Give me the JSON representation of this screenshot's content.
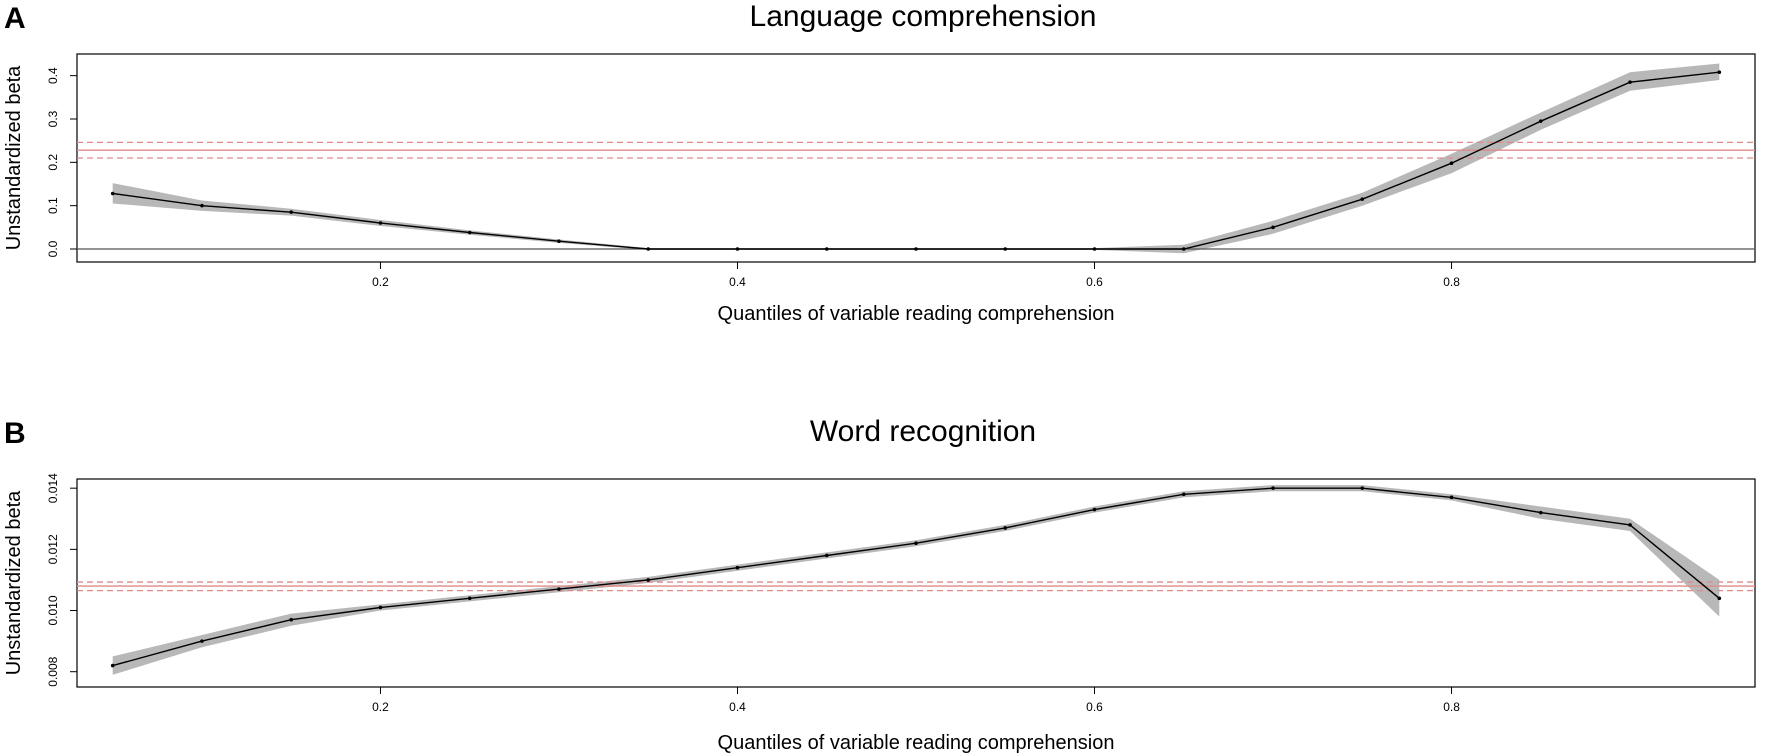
{
  "chart_data": [
    {
      "type": "line",
      "panel_label": "A",
      "title": "Language comprehension",
      "xlabel": "Quantiles of variable reading comprehension",
      "ylabel": "Unstandardized beta",
      "xlim": [
        0.03,
        0.97
      ],
      "ylim": [
        -0.03,
        0.45
      ],
      "x_ticks": [
        0.2,
        0.4,
        0.6,
        0.8
      ],
      "x_tick_labels": [
        "0.2",
        "0.4",
        "0.6",
        "0.8"
      ],
      "y_ticks": [
        0.0,
        0.1,
        0.2,
        0.3,
        0.4
      ],
      "y_tick_labels": [
        "0.0",
        "0.1",
        "0.2",
        "0.3",
        "0.4"
      ],
      "series": [
        {
          "x": [
            0.05,
            0.1,
            0.15,
            0.2,
            0.25,
            0.3,
            0.35,
            0.4,
            0.45,
            0.5,
            0.55,
            0.6,
            0.65,
            0.7,
            0.75,
            0.8,
            0.85,
            0.9,
            0.95
          ],
          "values": [
            0.128,
            0.1,
            0.085,
            0.06,
            0.038,
            0.018,
            0.0,
            0.0,
            0.0,
            0.0,
            0.0,
            0.0,
            0.0,
            0.05,
            0.115,
            0.198,
            0.295,
            0.385,
            0.408
          ],
          "ci_lower": [
            0.105,
            0.088,
            0.077,
            0.053,
            0.033,
            0.014,
            -0.002,
            -0.002,
            -0.002,
            -0.002,
            -0.002,
            -0.002,
            -0.01,
            0.035,
            0.1,
            0.175,
            0.275,
            0.365,
            0.39
          ],
          "ci_upper": [
            0.152,
            0.112,
            0.093,
            0.067,
            0.043,
            0.022,
            0.002,
            0.002,
            0.002,
            0.002,
            0.002,
            0.002,
            0.01,
            0.065,
            0.13,
            0.22,
            0.315,
            0.408,
            0.428
          ]
        }
      ],
      "reference_lines": {
        "ols_estimate": 0.228,
        "ols_ci_lower": 0.21,
        "ols_ci_upper": 0.246,
        "zero": 0.0
      },
      "colors": {
        "line": "#000000",
        "band": "#b8b8b8",
        "ols": "#e08a8a",
        "zero": "#555555"
      }
    },
    {
      "type": "line",
      "panel_label": "B",
      "title": "Word recognition",
      "xlabel": "Quantiles of variable reading comprehension",
      "ylabel": "Unstandardized beta",
      "xlim": [
        0.03,
        0.97
      ],
      "ylim": [
        0.0075,
        0.0143
      ],
      "x_ticks": [
        0.2,
        0.4,
        0.6,
        0.8
      ],
      "x_tick_labels": [
        "0.2",
        "0.4",
        "0.6",
        "0.8"
      ],
      "y_ticks": [
        0.008,
        0.01,
        0.012,
        0.014
      ],
      "y_tick_labels": [
        "0.008",
        "0.010",
        "0.012",
        "0.014"
      ],
      "series": [
        {
          "x": [
            0.05,
            0.1,
            0.15,
            0.2,
            0.25,
            0.3,
            0.35,
            0.4,
            0.45,
            0.5,
            0.55,
            0.6,
            0.65,
            0.7,
            0.75,
            0.8,
            0.85,
            0.9,
            0.95
          ],
          "values": [
            0.0082,
            0.009,
            0.0097,
            0.0101,
            0.0104,
            0.0107,
            0.011,
            0.0114,
            0.0118,
            0.0122,
            0.0127,
            0.0133,
            0.0138,
            0.014,
            0.014,
            0.0137,
            0.0132,
            0.0128,
            0.0104
          ],
          "ci_lower": [
            0.0079,
            0.0088,
            0.0095,
            0.01,
            0.0103,
            0.0106,
            0.0109,
            0.0113,
            0.0117,
            0.0121,
            0.0126,
            0.0132,
            0.0137,
            0.0139,
            0.0139,
            0.0136,
            0.013,
            0.0126,
            0.0098
          ],
          "ci_upper": [
            0.0085,
            0.0092,
            0.0099,
            0.0102,
            0.0105,
            0.0108,
            0.0111,
            0.0115,
            0.0119,
            0.0123,
            0.0128,
            0.0134,
            0.0139,
            0.0141,
            0.0141,
            0.0138,
            0.0134,
            0.013,
            0.011
          ]
        }
      ],
      "reference_lines": {
        "ols_estimate": 0.0108,
        "ols_ci_lower": 0.01065,
        "ols_ci_upper": 0.01093
      },
      "colors": {
        "line": "#000000",
        "band": "#b8b8b8",
        "ols": "#e08a8a"
      }
    }
  ]
}
